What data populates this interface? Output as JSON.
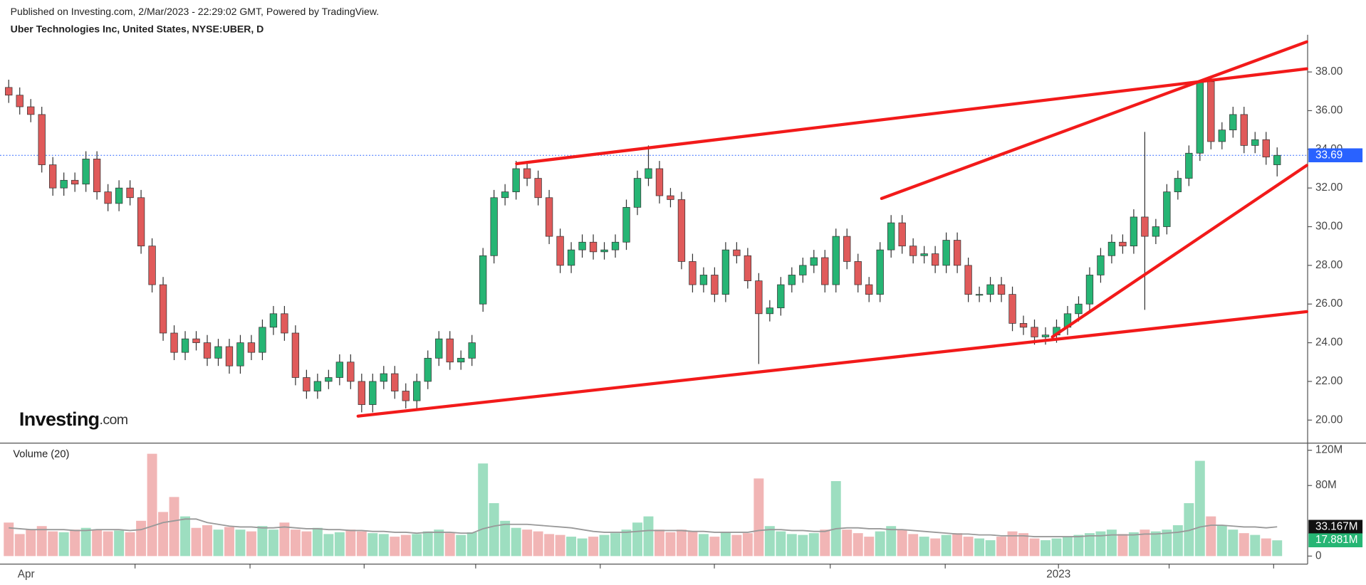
{
  "header": {
    "published": "Published on Investing.com, 2/Mar/2023 - 22:29:02 GMT, Powered by TradingView.",
    "symbol": "Uber Technologies Inc, United States, NYSE:UBER, D"
  },
  "logo": {
    "brand": "Investing",
    "suffix": ".com"
  },
  "chart_data": {
    "type": "candlestick",
    "x_labels": [
      "Apr",
      "2023"
    ],
    "up_color": "#26b574",
    "down_color": "#e05a5a",
    "open": [
      37.2,
      36.8,
      36.2,
      35.8,
      33.2,
      32,
      32.4,
      32.2,
      33.5,
      31.8,
      31.2,
      32,
      31.5,
      29,
      27,
      24.5,
      23.5,
      24.2,
      24,
      23.2,
      23.8,
      22.8,
      24,
      23.5,
      24.8,
      25.5,
      24.5,
      22.2,
      21.5,
      22,
      22.2,
      23,
      22,
      20.8,
      22,
      22.4,
      21.5,
      21,
      22,
      23.2,
      24.2,
      23,
      23.2,
      26,
      28.5,
      31.5,
      31.8,
      33,
      32.5,
      31.5,
      29.5,
      28,
      28.8,
      29.2,
      28.7,
      28.8,
      29.2,
      31,
      32.5,
      33,
      31.6,
      31.4,
      28.2,
      27,
      27.5,
      26.5,
      28.8,
      28.5,
      27.2,
      25.5,
      25.8,
      27,
      27.5,
      28,
      28.4,
      27,
      29.5,
      28.2,
      27,
      26.5,
      28.8,
      30.2,
      29,
      28.5,
      28.6,
      28,
      29.3,
      28,
      26.5,
      26.5,
      27,
      26.5,
      25,
      24.8,
      24.3,
      24.4,
      24.8,
      25.5,
      26,
      27.5,
      28.5,
      29.2,
      29,
      30.5,
      29.5,
      30,
      31.8,
      32.5,
      33.8,
      37.5,
      34.4,
      35,
      35.8,
      34.2,
      34.5,
      33.2
    ],
    "high": [
      37.6,
      37.2,
      36.6,
      36.2,
      33.6,
      32.8,
      32.8,
      33.9,
      33.9,
      32.2,
      32.4,
      32.4,
      31.9,
      29.4,
      27.4,
      24.9,
      24.6,
      24.6,
      24.4,
      24.2,
      24.2,
      24.4,
      24.4,
      25.2,
      25.9,
      25.9,
      24.9,
      22.6,
      22.4,
      22.6,
      23.4,
      23.4,
      22.4,
      22.4,
      22.8,
      22.8,
      21.9,
      22.4,
      23.6,
      24.6,
      24.6,
      23.6,
      24.4,
      28.9,
      31.9,
      32.2,
      33.4,
      33.4,
      32.9,
      31.9,
      29.9,
      29.2,
      29.6,
      29.6,
      29.2,
      29.6,
      31.4,
      32.9,
      34.2,
      33.4,
      32,
      31.8,
      28.6,
      27.9,
      27.9,
      29.2,
      29.2,
      28.9,
      27.6,
      26.2,
      27.4,
      27.9,
      28.4,
      28.8,
      28.8,
      29.9,
      29.9,
      28.6,
      27.4,
      29.2,
      30.6,
      30.6,
      29.4,
      29,
      29,
      29.7,
      29.7,
      28.4,
      26.9,
      27.4,
      27.4,
      26.9,
      25.4,
      25.2,
      24.8,
      25.2,
      25.9,
      26.4,
      27.9,
      28.9,
      29.6,
      29.6,
      30.9,
      34.9,
      30.4,
      32.2,
      32.9,
      34.2,
      37.6,
      37.7,
      35.4,
      36.2,
      36.2,
      34.9,
      34.9,
      34.1
    ],
    "low": [
      36.4,
      35.8,
      35.4,
      32.8,
      31.6,
      31.6,
      31.8,
      31.8,
      31.4,
      30.8,
      30.8,
      31.1,
      28.6,
      26.6,
      24.1,
      23.1,
      23.1,
      23.6,
      22.8,
      22.8,
      22.4,
      22.4,
      23.1,
      23.1,
      24.4,
      24.1,
      21.8,
      21.1,
      21.1,
      21.6,
      21.8,
      21.6,
      20.4,
      20.4,
      21.6,
      21.1,
      20.6,
      20.6,
      21.6,
      22.8,
      22.6,
      22.6,
      22.8,
      25.6,
      28.1,
      31.1,
      31.4,
      32.1,
      31.1,
      29.1,
      27.6,
      27.6,
      28.4,
      28.3,
      28.3,
      28.4,
      28.8,
      30.6,
      32.1,
      31.2,
      31,
      27.8,
      26.6,
      26.6,
      26.1,
      26.1,
      28.1,
      26.8,
      22.9,
      25.1,
      25.4,
      26.6,
      27.1,
      27.6,
      26.6,
      26.6,
      27.8,
      26.6,
      26.1,
      26.1,
      28.4,
      28.6,
      28.1,
      28.1,
      27.6,
      27.6,
      27.6,
      26.1,
      26.1,
      26.1,
      26.1,
      24.6,
      24.4,
      23.9,
      23.9,
      24,
      24.4,
      25.1,
      25.6,
      27.1,
      28.1,
      28.6,
      28.6,
      25.7,
      29.1,
      29.6,
      31.4,
      32.1,
      33.4,
      34,
      34,
      34.6,
      33.8,
      33.8,
      33.2,
      32.6
    ],
    "close": [
      36.8,
      36.2,
      35.8,
      33.2,
      32,
      32.4,
      32.2,
      33.5,
      31.8,
      31.2,
      32,
      31.5,
      29,
      27,
      24.5,
      23.5,
      24.2,
      24,
      23.2,
      23.8,
      22.8,
      24,
      23.5,
      24.8,
      25.5,
      24.5,
      22.2,
      21.5,
      22,
      22.2,
      23,
      22,
      20.8,
      22,
      22.4,
      21.5,
      21,
      22,
      23.2,
      24.2,
      23,
      23.2,
      24,
      28.5,
      31.5,
      31.8,
      33,
      32.5,
      31.5,
      29.5,
      28,
      28.8,
      29.2,
      28.7,
      28.8,
      29.2,
      31,
      32.5,
      33,
      31.6,
      31.4,
      28.2,
      27,
      27.5,
      26.5,
      28.8,
      28.5,
      27.2,
      25.5,
      25.8,
      27,
      27.5,
      28,
      28.4,
      27,
      29.5,
      28.2,
      27,
      26.5,
      28.8,
      30.2,
      29,
      28.5,
      28.6,
      28,
      29.3,
      28,
      26.5,
      26.5,
      27,
      26.5,
      25,
      24.8,
      24.3,
      24.4,
      24.8,
      25.5,
      26,
      27.5,
      28.5,
      29.2,
      29,
      30.5,
      29.5,
      30,
      31.8,
      32.5,
      33.8,
      37.5,
      34.4,
      35,
      35.8,
      34.2,
      34.5,
      33.6,
      33.69
    ],
    "ylim": [
      18.81,
      39.92
    ],
    "yticks": [
      {
        "value": 20,
        "label": "20.00"
      },
      {
        "value": 22,
        "label": "22.00"
      },
      {
        "value": 24,
        "label": "24.00"
      },
      {
        "value": 26,
        "label": "26.00"
      },
      {
        "value": 28,
        "label": "28.00"
      },
      {
        "value": 30,
        "label": "30.00"
      },
      {
        "value": 32,
        "label": "32.00"
      },
      {
        "value": 34,
        "label": "34.00"
      },
      {
        "value": 36,
        "label": "36.00"
      },
      {
        "value": 38,
        "label": "38.00"
      }
    ],
    "last_price": 33.69,
    "last_price_color": "#2962ff",
    "volume": {
      "title": "Volume (20)",
      "values": [
        38,
        25,
        30,
        34,
        28,
        27,
        30,
        32,
        30,
        28,
        29,
        27,
        40,
        116,
        50,
        67,
        45,
        32,
        35,
        30,
        33,
        30,
        28,
        34,
        30,
        38,
        30,
        28,
        32,
        25,
        27,
        30,
        28,
        26,
        25,
        22,
        24,
        25,
        28,
        30,
        26,
        24,
        27,
        105,
        60,
        40,
        32,
        30,
        28,
        25,
        24,
        22,
        20,
        22,
        24,
        26,
        30,
        38,
        45,
        30,
        27,
        30,
        28,
        25,
        22,
        27,
        24,
        26,
        88,
        34,
        28,
        25,
        24,
        26,
        30,
        85,
        30,
        26,
        22,
        28,
        34,
        30,
        25,
        22,
        20,
        24,
        26,
        22,
        20,
        18,
        22,
        28,
        26,
        20,
        18,
        20,
        22,
        24,
        26,
        28,
        30,
        25,
        27,
        30,
        28,
        30,
        35,
        60,
        108,
        45,
        35,
        30,
        26,
        24,
        20,
        17.881
      ],
      "ma": [
        32,
        31,
        30,
        30,
        30,
        30,
        29,
        29,
        30,
        30,
        30,
        29,
        30,
        34,
        38,
        40,
        42,
        42,
        38,
        36,
        34,
        33,
        33,
        32,
        32,
        33,
        32,
        31,
        31,
        30,
        30,
        29,
        29,
        28,
        28,
        27,
        27,
        26,
        27,
        27,
        27,
        26,
        26,
        31,
        34,
        36,
        36,
        36,
        35,
        34,
        33,
        32,
        30,
        28,
        27,
        27,
        27,
        28,
        29,
        29,
        29,
        29,
        28,
        28,
        27,
        27,
        27,
        27,
        29,
        30,
        30,
        29,
        29,
        28,
        28,
        31,
        32,
        32,
        31,
        31,
        30,
        30,
        29,
        28,
        27,
        26,
        25,
        25,
        24,
        24,
        23,
        23,
        23,
        22,
        22,
        22,
        22,
        22,
        23,
        23,
        24,
        24,
        24,
        25,
        25,
        26,
        27,
        29,
        33,
        35,
        35,
        34,
        33,
        33,
        32,
        33.167
      ],
      "ma_color": "#999999",
      "last_ma": {
        "value": 33.167,
        "label": "33.167M"
      },
      "last_volume": {
        "value": 17.881,
        "label": "17.881M"
      },
      "ylim": [
        -9.1,
        128.1
      ],
      "yticks": [
        0,
        {
          "value": 80,
          "label": "80M"
        },
        {
          "value": 120,
          "label": "120M"
        }
      ]
    }
  }
}
